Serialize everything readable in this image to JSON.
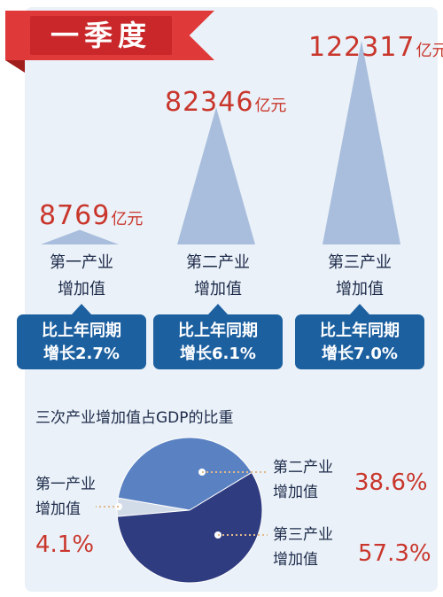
{
  "header": {
    "title": "一季度"
  },
  "sectors": [
    {
      "name_line1": "第一产业",
      "name_line2": "增加值",
      "amount": "8769",
      "unit": "亿元",
      "growth_line1": "比上年同期",
      "growth_line2": "增长2.7%"
    },
    {
      "name_line1": "第二产业",
      "name_line2": "增加值",
      "amount": "82346",
      "unit": "亿元",
      "growth_line1": "比上年同期",
      "growth_line2": "增长6.1%"
    },
    {
      "name_line1": "第三产业",
      "name_line2": "增加值",
      "amount": "122317",
      "unit": "亿元",
      "growth_line1": "比上年同期",
      "growth_line2": "增长7.0%"
    }
  ],
  "pie": {
    "title": "三次产业增加值占GDP的比重",
    "labels": [
      {
        "line1": "第一产业",
        "line2": "增加值",
        "pct": "4.1%"
      },
      {
        "line1": "第二产业",
        "line2": "增加值",
        "pct": "38.6%"
      },
      {
        "line1": "第三产业",
        "line2": "增加值",
        "pct": "57.3%"
      }
    ]
  },
  "colors": {
    "accent_red": "#c9362c",
    "navy": "#1c60a0",
    "triangle": "#a9bedd",
    "pie_primary": "#d2dce8",
    "pie_secondary": "#5a81c2",
    "pie_tertiary": "#2f3c80"
  },
  "chart_data": [
    {
      "type": "bar",
      "title": "一季度",
      "categories": [
        "第一产业增加值",
        "第二产业增加值",
        "第三产业增加值"
      ],
      "values": [
        8769,
        82346,
        122317
      ],
      "unit": "亿元",
      "growth_pct": [
        2.7,
        6.1,
        7.0
      ]
    },
    {
      "type": "pie",
      "title": "三次产业增加值占GDP的比重",
      "categories": [
        "第一产业增加值",
        "第二产业增加值",
        "第三产业增加值"
      ],
      "values": [
        4.1,
        38.6,
        57.3
      ],
      "unit": "%"
    }
  ]
}
